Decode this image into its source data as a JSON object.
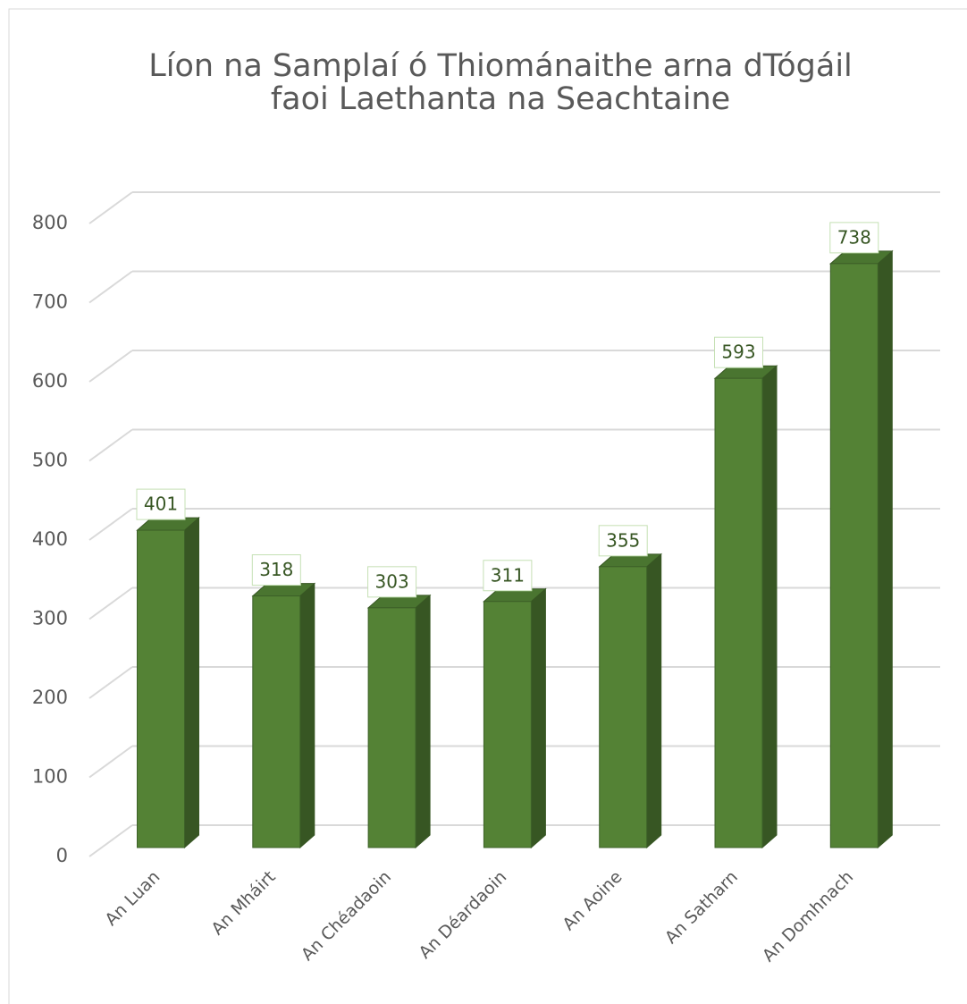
{
  "chart_data": {
    "type": "bar3d",
    "title": "Líon na Samplaí ó Thiománaithe arna dTógáil faoi Laethanta na Seachtaine",
    "categories": [
      "An Luan",
      "An Mháirt",
      "An Chéadaoin",
      "An Déardaoin",
      "An Aoine",
      "An Satharn",
      "An Domhnach"
    ],
    "values": [
      401,
      318,
      303,
      311,
      355,
      593,
      738
    ],
    "color": "#548235",
    "ylim": [
      0,
      800
    ],
    "yticks": [
      0,
      100,
      200,
      300,
      400,
      500,
      600,
      700,
      800
    ],
    "grid": true
  }
}
